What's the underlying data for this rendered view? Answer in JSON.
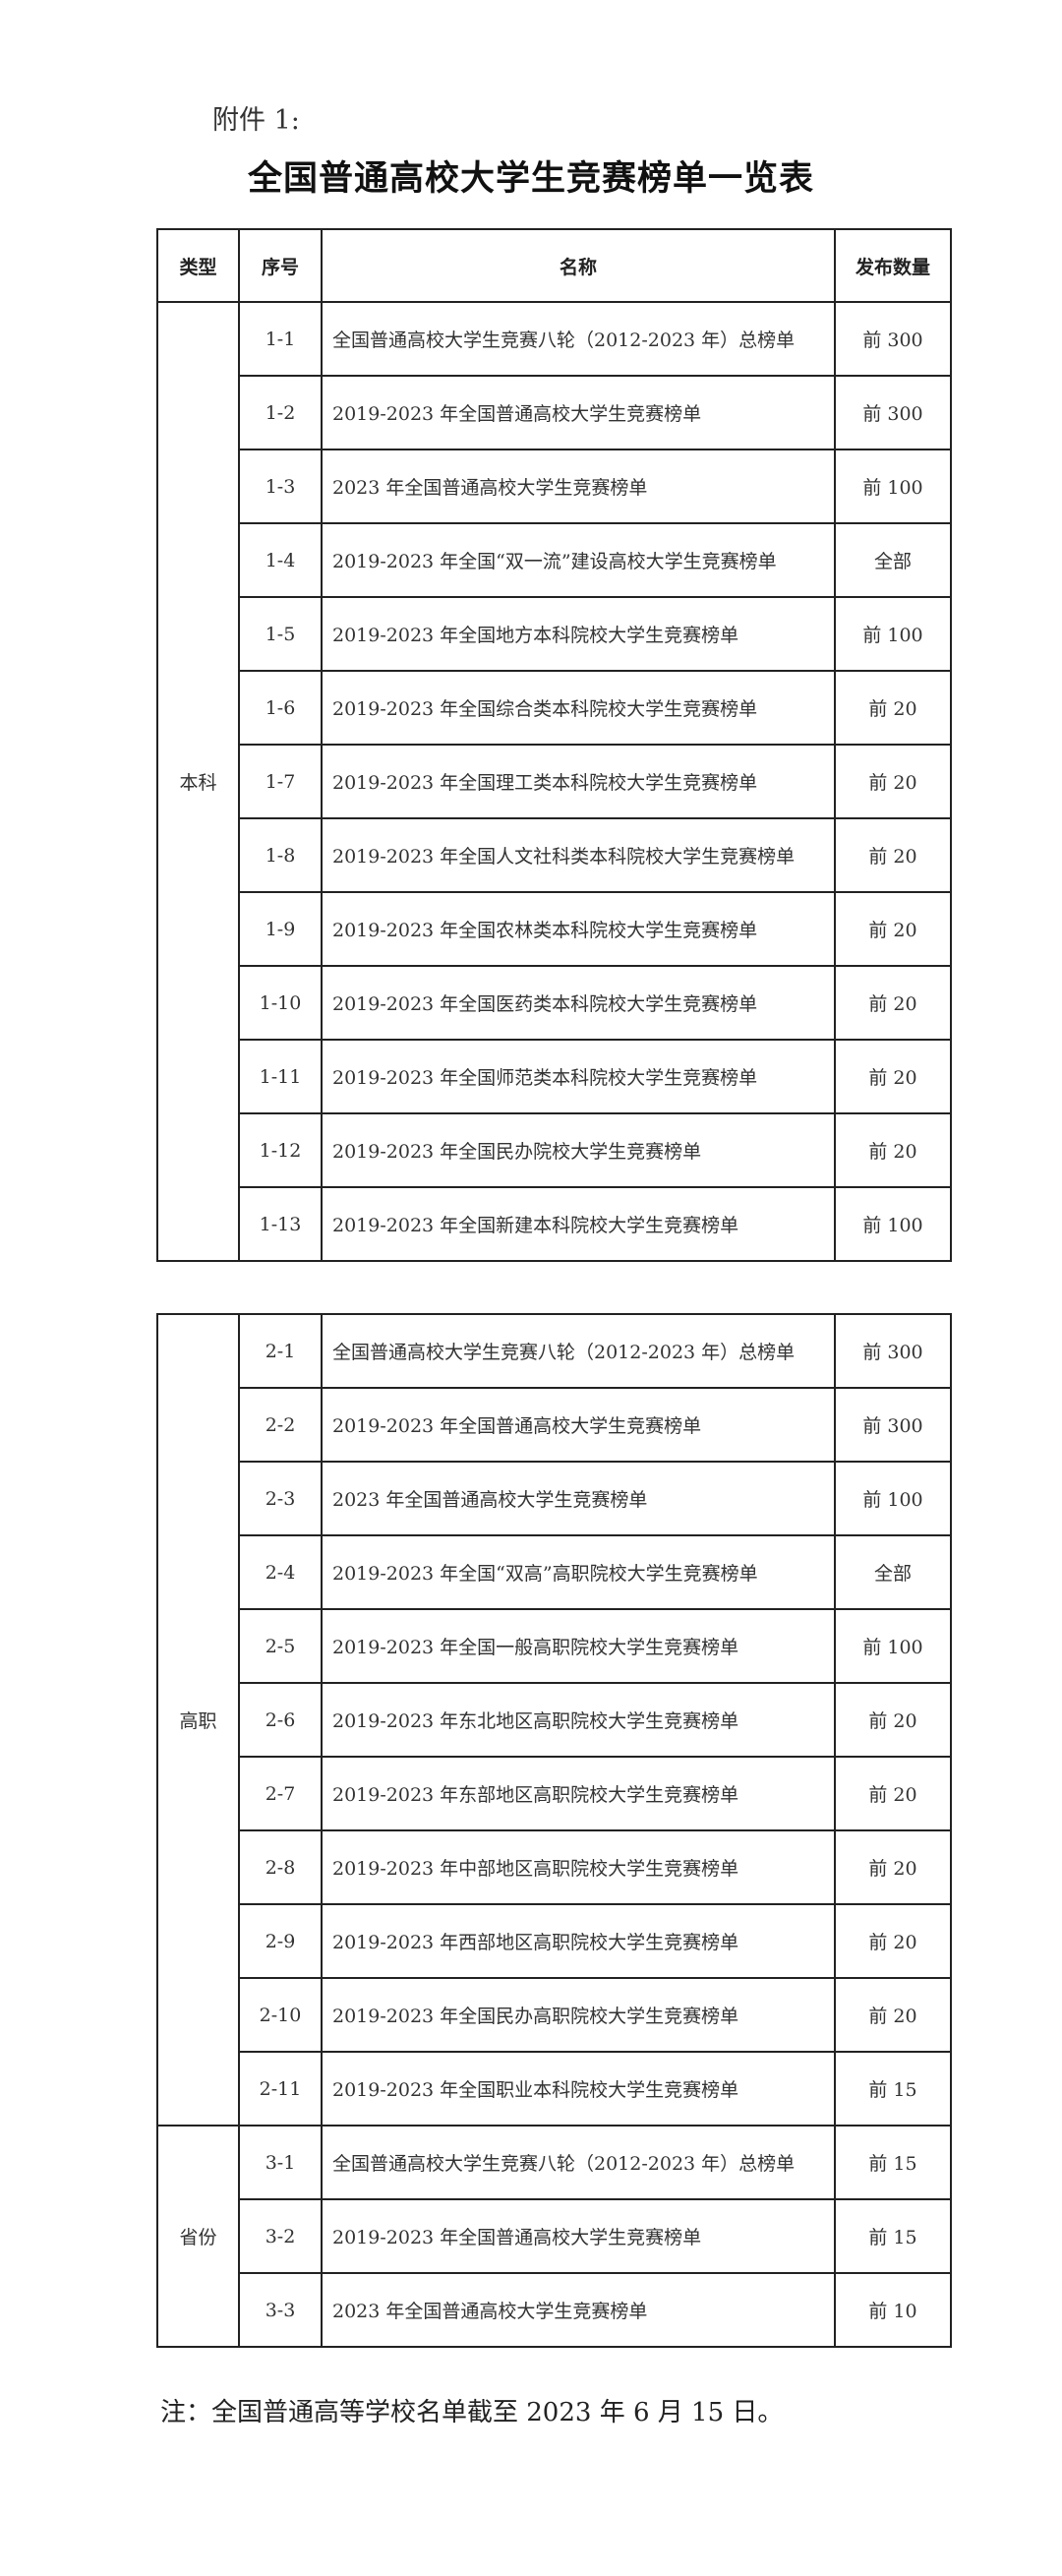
{
  "attachment_label": "附件 1:",
  "title": "全国普通高校大学生竞赛榜单一览表",
  "headers": {
    "type": "类型",
    "index": "序号",
    "name": "名称",
    "count": "发布数量"
  },
  "tables": [
    {
      "groups": [
        {
          "type": "本科",
          "rows": [
            {
              "index": "1-1",
              "name": "全国普通高校大学生竞赛八轮（2012-2023 年）总榜单",
              "count": "前 300"
            },
            {
              "index": "1-2",
              "name": "2019-2023 年全国普通高校大学生竞赛榜单",
              "count": "前 300"
            },
            {
              "index": "1-3",
              "name": "2023 年全国普通高校大学生竞赛榜单",
              "count": "前 100"
            },
            {
              "index": "1-4",
              "name": "2019-2023 年全国“双一流”建设高校大学生竞赛榜单",
              "count": "全部"
            },
            {
              "index": "1-5",
              "name": "2019-2023 年全国地方本科院校大学生竞赛榜单",
              "count": "前 100"
            },
            {
              "index": "1-6",
              "name": "2019-2023 年全国综合类本科院校大学生竞赛榜单",
              "count": "前 20"
            },
            {
              "index": "1-7",
              "name": "2019-2023 年全国理工类本科院校大学生竞赛榜单",
              "count": "前 20"
            },
            {
              "index": "1-8",
              "name": "2019-2023 年全国人文社科类本科院校大学生竞赛榜单",
              "count": "前 20"
            },
            {
              "index": "1-9",
              "name": "2019-2023 年全国农林类本科院校大学生竞赛榜单",
              "count": "前 20"
            },
            {
              "index": "1-10",
              "name": "2019-2023 年全国医药类本科院校大学生竞赛榜单",
              "count": "前 20"
            },
            {
              "index": "1-11",
              "name": "2019-2023 年全国师范类本科院校大学生竞赛榜单",
              "count": "前 20"
            },
            {
              "index": "1-12",
              "name": "2019-2023 年全国民办院校大学生竞赛榜单",
              "count": "前 20"
            },
            {
              "index": "1-13",
              "name": "2019-2023 年全国新建本科院校大学生竞赛榜单",
              "count": "前 100"
            }
          ]
        }
      ]
    },
    {
      "groups": [
        {
          "type": "高职",
          "rows": [
            {
              "index": "2-1",
              "name": "全国普通高校大学生竞赛八轮（2012-2023 年）总榜单",
              "count": "前 300"
            },
            {
              "index": "2-2",
              "name": "2019-2023 年全国普通高校大学生竞赛榜单",
              "count": "前 300"
            },
            {
              "index": "2-3",
              "name": "2023 年全国普通高校大学生竞赛榜单",
              "count": "前 100"
            },
            {
              "index": "2-4",
              "name": "2019-2023 年全国“双高”高职院校大学生竞赛榜单",
              "count": "全部"
            },
            {
              "index": "2-5",
              "name": "2019-2023 年全国一般高职院校大学生竞赛榜单",
              "count": "前 100"
            },
            {
              "index": "2-6",
              "name": "2019-2023 年东北地区高职院校大学生竞赛榜单",
              "count": "前 20"
            },
            {
              "index": "2-7",
              "name": "2019-2023 年东部地区高职院校大学生竞赛榜单",
              "count": "前 20"
            },
            {
              "index": "2-8",
              "name": "2019-2023 年中部地区高职院校大学生竞赛榜单",
              "count": "前 20"
            },
            {
              "index": "2-9",
              "name": "2019-2023 年西部地区高职院校大学生竞赛榜单",
              "count": "前 20"
            },
            {
              "index": "2-10",
              "name": "2019-2023 年全国民办高职院校大学生竞赛榜单",
              "count": "前 20"
            },
            {
              "index": "2-11",
              "name": "2019-2023 年全国职业本科院校大学生竞赛榜单",
              "count": "前 15"
            }
          ]
        },
        {
          "type": "省份",
          "rows": [
            {
              "index": "3-1",
              "name": "全国普通高校大学生竞赛八轮（2012-2023 年）总榜单",
              "count": "前 15"
            },
            {
              "index": "3-2",
              "name": "2019-2023 年全国普通高校大学生竞赛榜单",
              "count": "前 15"
            },
            {
              "index": "3-3",
              "name": "2023 年全国普通高校大学生竞赛榜单",
              "count": "前 10"
            }
          ]
        }
      ]
    }
  ],
  "note": "注：全国普通高等学校名单截至 2023 年 6 月 15 日。"
}
